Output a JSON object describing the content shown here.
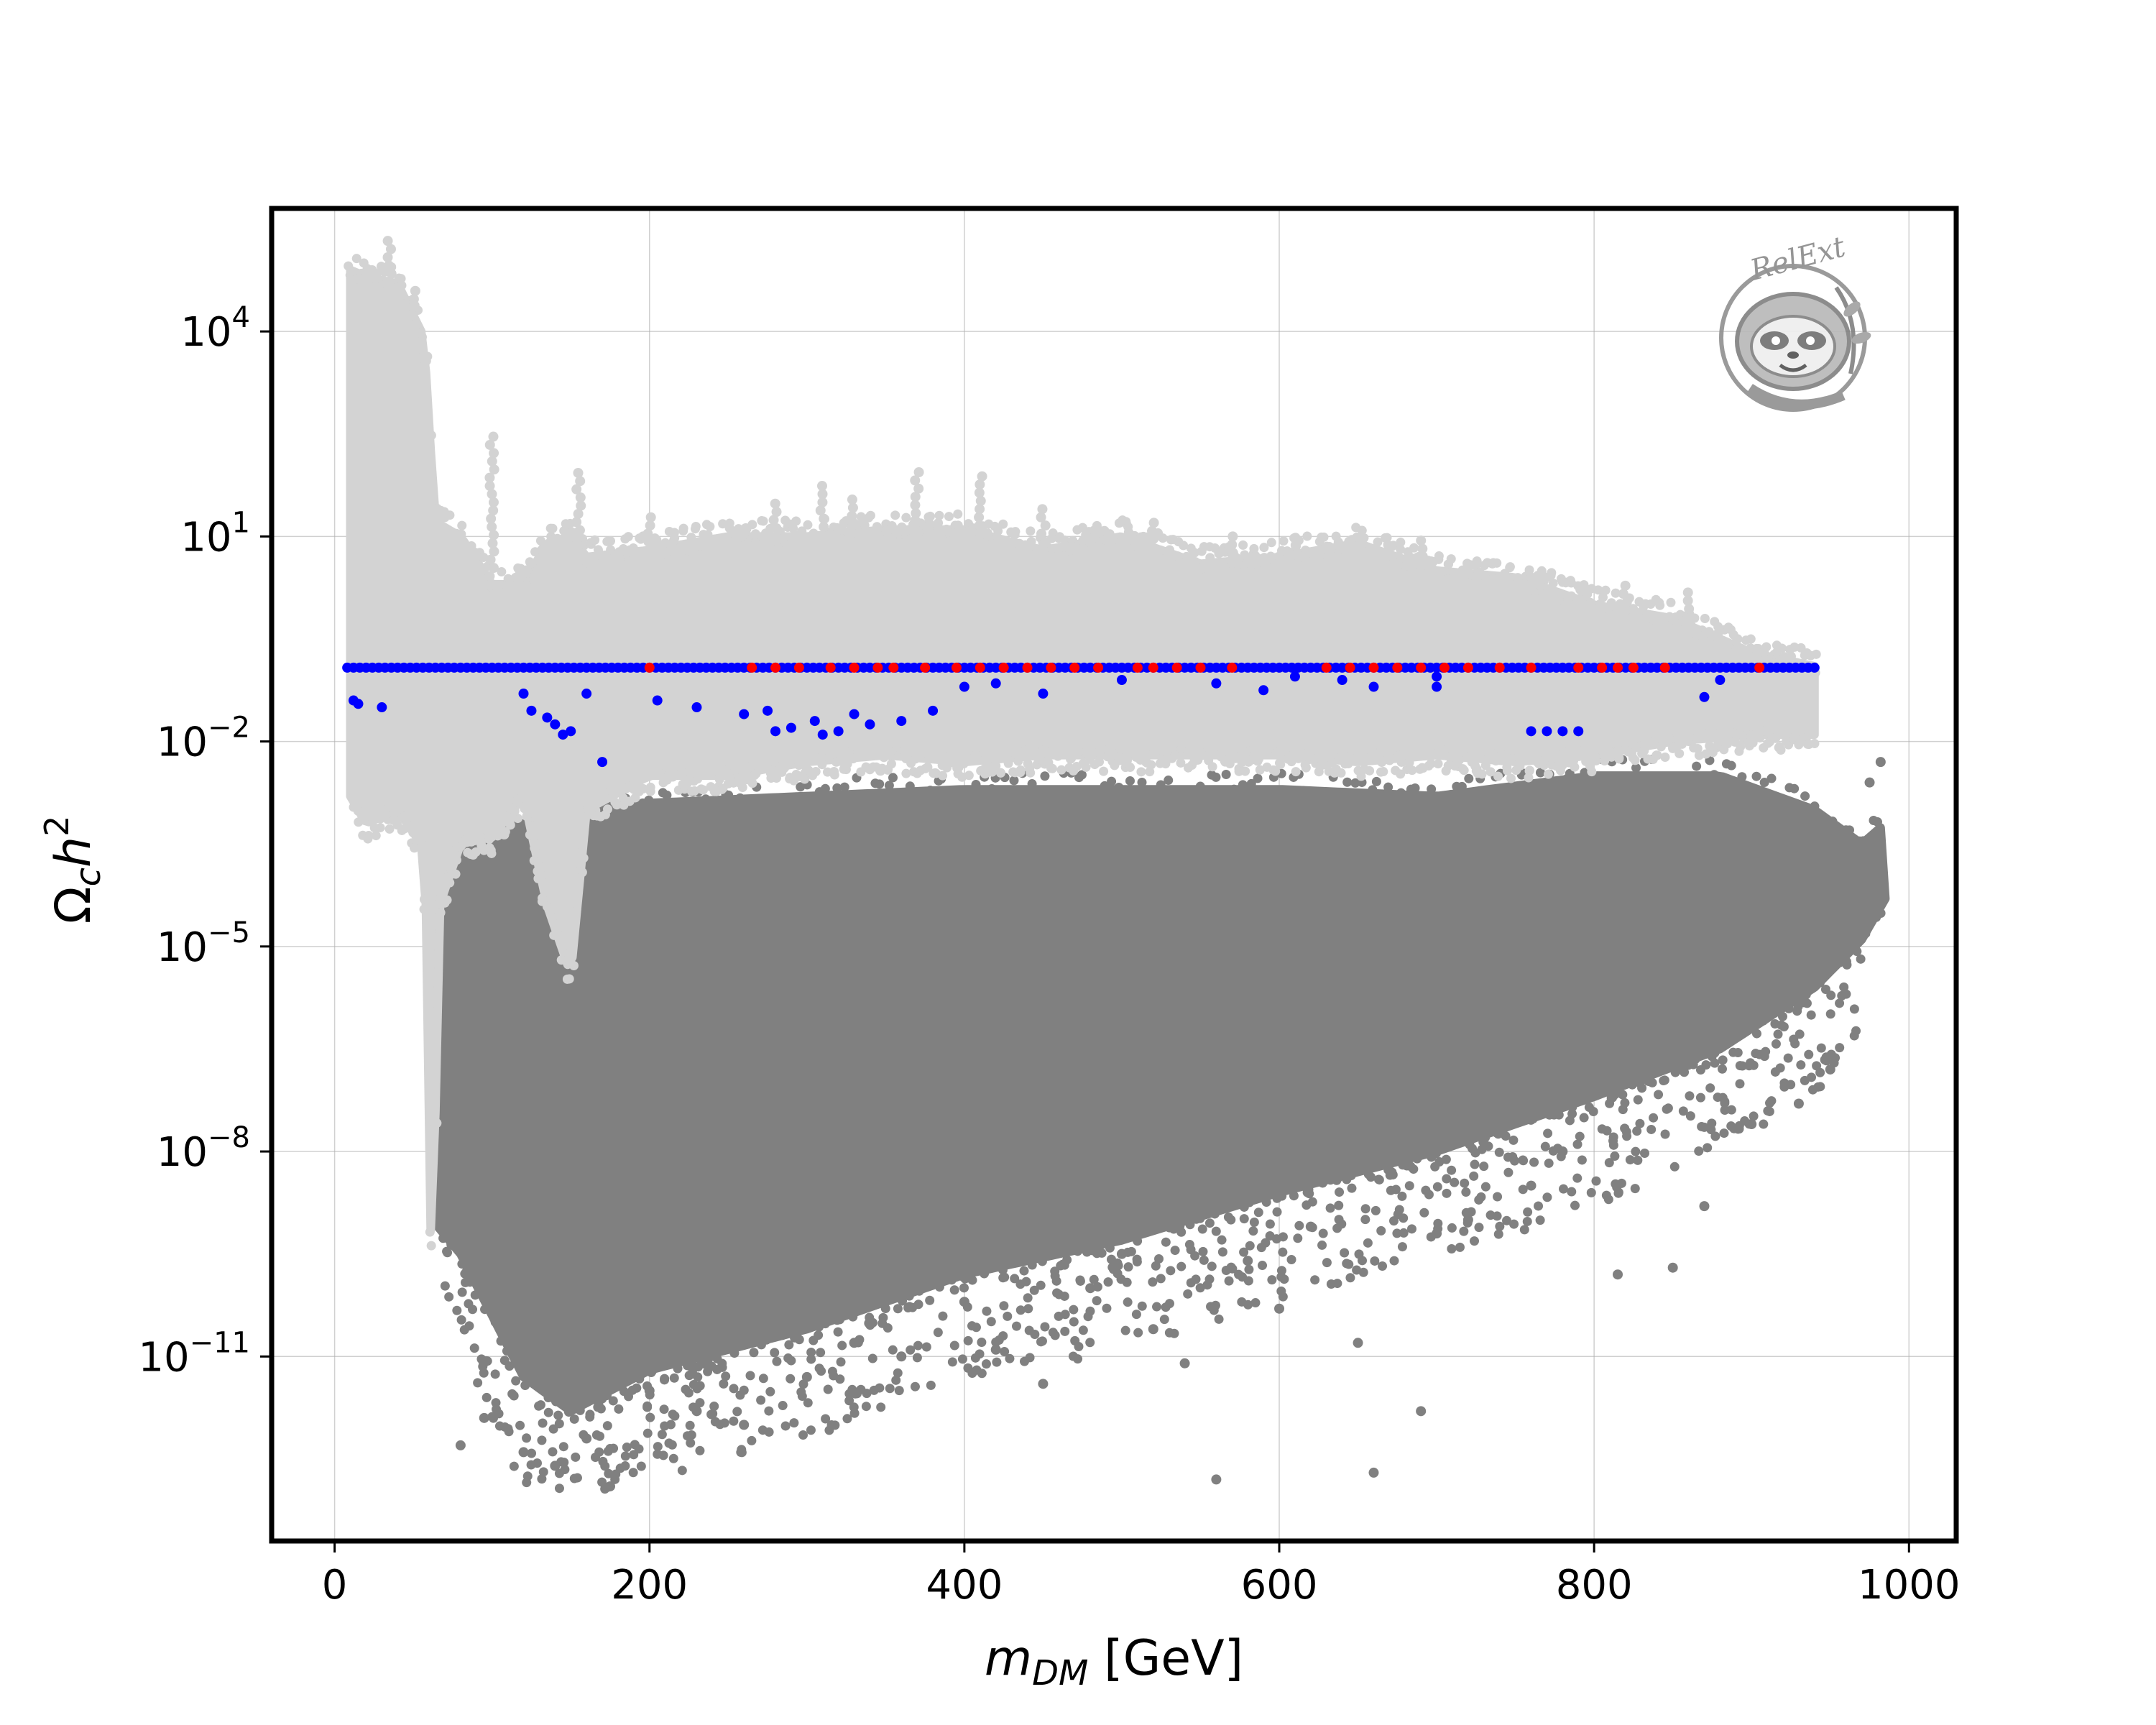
{
  "chart_data": {
    "type": "scatter",
    "xlabel_main": "m",
    "xlabel_sub": "DM",
    "xlabel_unit": " [GeV]",
    "ylabel_main": "Ω",
    "ylabel_sub": "c",
    "ylabel_h": "h",
    "ylabel_exp": "2",
    "xlim": [
      -40,
      1030
    ],
    "ylim_log10": [
      -13.7,
      5.8
    ],
    "y_scale": "log",
    "grid": true,
    "x_ticks": [
      {
        "value": 0,
        "label": "0"
      },
      {
        "value": 200,
        "label": "200"
      },
      {
        "value": 400,
        "label": "400"
      },
      {
        "value": 600,
        "label": "600"
      },
      {
        "value": 800,
        "label": "800"
      },
      {
        "value": 1000,
        "label": "1000"
      }
    ],
    "y_ticks": [
      {
        "exp": 4,
        "base": "10",
        "sup": "4"
      },
      {
        "exp": 1,
        "base": "10",
        "sup": "1"
      },
      {
        "exp": -2,
        "base": "10",
        "sup": "−2"
      },
      {
        "exp": -5,
        "base": "10",
        "sup": "−5"
      },
      {
        "exp": -8,
        "base": "10",
        "sup": "−8"
      },
      {
        "exp": -11,
        "base": "10",
        "sup": "−11"
      }
    ],
    "watermark": {
      "text": "RelExt",
      "icon": "sloth-logo-icon"
    },
    "series_styles": {
      "excluded_dark": "#808080",
      "excluded_light": "#d3d3d3",
      "allowed_blue": "#0000ff",
      "allowed_red": "#ff0000"
    },
    "series": [
      {
        "style": "excluded_dark",
        "color": "#808080",
        "envelope": {
          "x": [
            62,
            80,
            120,
            150,
            200,
            300,
            400,
            500,
            600,
            700,
            800,
            880,
            940,
            970,
            985
          ],
          "upper_log10": [
            -3.5,
            -3.0,
            -3.3,
            -3.0,
            -2.9,
            -2.8,
            -2.7,
            -2.7,
            -2.7,
            -2.8,
            -2.5,
            -2.5,
            -3.0,
            -3.5,
            -3.2
          ],
          "lower_log10": [
            -9.0,
            -9.5,
            -11.3,
            -11.8,
            -11.2,
            -10.6,
            -9.8,
            -9.3,
            -8.6,
            -8.0,
            -7.2,
            -6.5,
            -5.6,
            -4.9,
            -4.3
          ]
        },
        "sparse_points": [
          [
            80,
            -12.3
          ],
          [
            95,
            -11.9
          ],
          [
            120,
            -12.4
          ],
          [
            140,
            -12.6
          ],
          [
            160,
            -12.2
          ],
          [
            175,
            -12.9
          ],
          [
            200,
            -11.5
          ],
          [
            230,
            -11.8
          ],
          [
            260,
            -12.0
          ],
          [
            300,
            -11.3
          ],
          [
            330,
            -10.8
          ],
          [
            360,
            -11.0
          ],
          [
            400,
            -10.2
          ],
          [
            420,
            -10.9
          ],
          [
            450,
            -11.4
          ],
          [
            480,
            -10.0
          ],
          [
            500,
            -9.5
          ],
          [
            520,
            -10.6
          ],
          [
            540,
            -11.1
          ],
          [
            560,
            -12.8
          ],
          [
            580,
            -9.6
          ],
          [
            600,
            -10.3
          ],
          [
            620,
            -9.1
          ],
          [
            650,
            -10.8
          ],
          [
            660,
            -12.7
          ],
          [
            690,
            -11.8
          ],
          [
            700,
            -9.2
          ],
          [
            720,
            -9.0
          ],
          [
            760,
            -8.5
          ],
          [
            780,
            -8.0
          ],
          [
            815,
            -9.8
          ],
          [
            850,
            -9.7
          ],
          [
            870,
            -8.8
          ],
          [
            900,
            -7.6
          ],
          [
            930,
            -7.3
          ],
          [
            950,
            -6.8
          ],
          [
            975,
            -2.6
          ],
          [
            982,
            -2.3
          ],
          [
            960,
            -3.3
          ],
          [
            920,
            -4.9
          ],
          [
            410,
            -6.2
          ],
          [
            380,
            -8.8
          ],
          [
            350,
            -9.9
          ],
          [
            280,
            -10.1
          ],
          [
            250,
            -10.7
          ]
        ]
      },
      {
        "style": "excluded_light",
        "color": "#d3d3d3",
        "envelope": {
          "x": [
            10,
            20,
            40,
            55,
            60,
            62,
            65,
            80,
            100,
            120,
            135,
            150,
            160,
            200,
            250,
            300,
            350,
            400,
            450,
            500,
            550,
            600,
            650,
            700,
            750,
            800,
            850,
            900,
            940
          ],
          "upper_log10": [
            4.9,
            4.8,
            4.7,
            4.0,
            3.0,
            1.5,
            1.2,
            1.0,
            0.3,
            0.3,
            0.9,
            1.0,
            0.7,
            0.8,
            1.0,
            1.0,
            1.1,
            1.1,
            0.8,
            1.0,
            0.6,
            0.7,
            0.9,
            0.5,
            0.4,
            0.0,
            -0.2,
            -0.7,
            -0.9
          ],
          "lower_log10": [
            -2.8,
            -3.2,
            -3.0,
            -3.5,
            -5.0,
            -13.3,
            -4.5,
            -3.5,
            -3.4,
            -2.8,
            -4.4,
            -5.4,
            -3.0,
            -2.5,
            -2.5,
            -2.3,
            -2.2,
            -2.3,
            -2.2,
            -2.2,
            -2.2,
            -2.2,
            -2.3,
            -2.2,
            -2.3,
            -2.2,
            -2.0,
            -1.9,
            -1.9
          ]
        },
        "spike_points": [
          [
            35,
            5.4
          ],
          [
            25,
            5.0
          ],
          [
            50,
            4.6
          ],
          [
            100,
            2.5
          ],
          [
            155,
            2.0
          ],
          [
            260,
            1.2
          ],
          [
            310,
            1.8
          ],
          [
            370,
            2.0
          ],
          [
            410,
            1.9
          ],
          [
            490,
            1.2
          ],
          [
            570,
            1.0
          ],
          [
            610,
            1.0
          ],
          [
            645,
            0.8
          ],
          [
            690,
            1.0
          ],
          [
            720,
            0.7
          ],
          [
            765,
            0.5
          ],
          [
            820,
            0.3
          ],
          [
            860,
            0.2
          ],
          [
            280,
            1.5
          ],
          [
            200,
            1.3
          ],
          [
            450,
            1.5
          ],
          [
            520,
            1.3
          ],
          [
            330,
            1.6
          ],
          [
            120,
            0.5
          ]
        ]
      },
      {
        "style": "allowed_blue",
        "color": "#0000ff",
        "band": {
          "y_log10": -0.92,
          "x_min": 8,
          "x_max": 940,
          "dx": 4
        },
        "points": [
          [
            15,
            -1.45
          ],
          [
            30,
            -1.5
          ],
          [
            12,
            -1.4
          ],
          [
            120,
            -1.3
          ],
          [
            125,
            -1.55
          ],
          [
            135,
            -1.65
          ],
          [
            140,
            -1.75
          ],
          [
            145,
            -1.9
          ],
          [
            150,
            -1.85
          ],
          [
            170,
            -2.3
          ],
          [
            160,
            -1.3
          ],
          [
            205,
            -1.4
          ],
          [
            230,
            -1.5
          ],
          [
            260,
            -1.6
          ],
          [
            275,
            -1.55
          ],
          [
            290,
            -1.8
          ],
          [
            305,
            -1.7
          ],
          [
            320,
            -1.85
          ],
          [
            340,
            -1.75
          ],
          [
            360,
            -1.7
          ],
          [
            380,
            -1.55
          ],
          [
            400,
            -1.2
          ],
          [
            420,
            -1.15
          ],
          [
            450,
            -1.3
          ],
          [
            500,
            -1.1
          ],
          [
            560,
            -1.15
          ],
          [
            590,
            -1.25
          ],
          [
            610,
            -1.05
          ],
          [
            640,
            -1.1
          ],
          [
            660,
            -1.2
          ],
          [
            700,
            -1.05
          ],
          [
            760,
            -1.85
          ],
          [
            770,
            -1.85
          ],
          [
            780,
            -1.85
          ],
          [
            790,
            -1.85
          ],
          [
            870,
            -1.35
          ],
          [
            880,
            -1.1
          ],
          [
            700,
            -1.2
          ],
          [
            330,
            -1.6
          ],
          [
            310,
            -1.9
          ],
          [
            280,
            -1.85
          ]
        ]
      },
      {
        "style": "allowed_red",
        "color": "#ff0000",
        "points": [
          [
            200,
            -0.92
          ],
          [
            265,
            -0.92
          ],
          [
            280,
            -0.92
          ],
          [
            295,
            -0.92
          ],
          [
            315,
            -0.92
          ],
          [
            330,
            -0.92
          ],
          [
            345,
            -0.92
          ],
          [
            355,
            -0.92
          ],
          [
            375,
            -0.92
          ],
          [
            395,
            -0.92
          ],
          [
            410,
            -0.92
          ],
          [
            425,
            -0.92
          ],
          [
            440,
            -0.92
          ],
          [
            455,
            -0.92
          ],
          [
            470,
            -0.92
          ],
          [
            485,
            -0.92
          ],
          [
            510,
            -0.92
          ],
          [
            520,
            -0.92
          ],
          [
            535,
            -0.92
          ],
          [
            550,
            -0.92
          ],
          [
            570,
            -0.92
          ],
          [
            630,
            -0.92
          ],
          [
            645,
            -0.92
          ],
          [
            660,
            -0.92
          ],
          [
            675,
            -0.92
          ],
          [
            690,
            -0.92
          ],
          [
            705,
            -0.92
          ],
          [
            720,
            -0.92
          ],
          [
            740,
            -0.92
          ],
          [
            760,
            -0.92
          ],
          [
            790,
            -0.92
          ],
          [
            805,
            -0.92
          ],
          [
            815,
            -0.92
          ],
          [
            825,
            -0.92
          ],
          [
            845,
            -0.92
          ],
          [
            905,
            -0.92
          ]
        ]
      }
    ]
  }
}
